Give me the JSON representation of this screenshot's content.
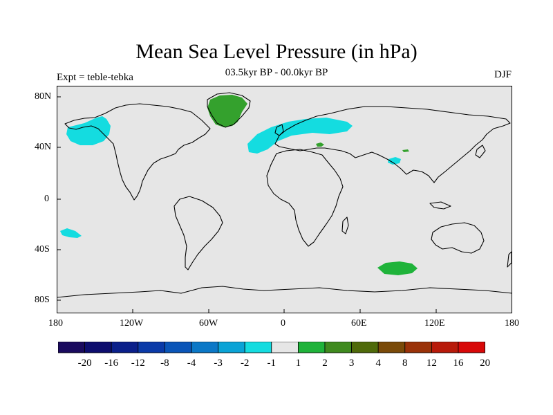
{
  "title": "Mean Sea Level Pressure (in hPa)",
  "subtitle": "03.5kyr BP - 00.0kyr BP",
  "left_label": "Expt = teble-tebka",
  "right_label": "DJF",
  "lat_labels": [
    "80N",
    "40N",
    "0",
    "40S",
    "80S"
  ],
  "lon_labels": [
    "180",
    "120W",
    "60W",
    "0",
    "60E",
    "120E",
    "180"
  ],
  "colorbar": {
    "labels": [
      "-20",
      "-16",
      "-12",
      "-8",
      "-4",
      "-3",
      "-2",
      "-1",
      "1",
      "2",
      "3",
      "4",
      "8",
      "12",
      "16",
      "20"
    ],
    "colors": [
      "#1a0a5e",
      "#0d0d6e",
      "#0a1f8a",
      "#0a3aa8",
      "#0a55b8",
      "#0b78c7",
      "#0aa3d6",
      "#14dce0",
      "#e6e6e6",
      "#1fb33a",
      "#3f8a1e",
      "#4f6a0a",
      "#7a4a08",
      "#9a3208",
      "#b81a0a",
      "#d80808"
    ]
  },
  "colors": {
    "land_ocean_bg": "#e6e6e6",
    "negative_anomaly": "#14dce0",
    "positive_anomaly": "#1fb33a",
    "positive_anomaly_dark": "#34a12d"
  }
}
